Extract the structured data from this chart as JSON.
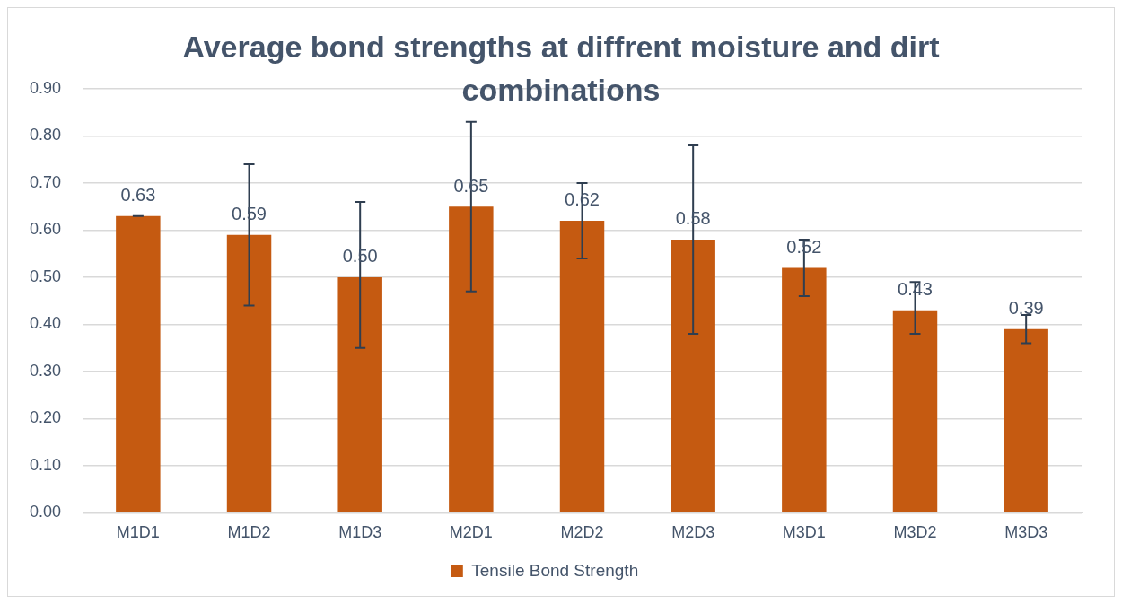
{
  "chart_data": {
    "type": "bar",
    "title": "Average bond strengths at diffrent moisture and dirt combinations",
    "categories": [
      "M1D1",
      "M1D2",
      "M1D3",
      "M2D1",
      "M2D2",
      "M2D3",
      "M3D1",
      "M3D2",
      "M3D3"
    ],
    "series": [
      {
        "name": "Tensile Bond Strength",
        "color": "#c55a11",
        "values": [
          0.63,
          0.59,
          0.5,
          0.65,
          0.62,
          0.58,
          0.52,
          0.43,
          0.39
        ],
        "value_labels": [
          "0.63",
          "0.59",
          "0.50",
          "0.65",
          "0.62",
          "0.58",
          "0.52",
          "0.43",
          "0.39"
        ],
        "errors": [
          0,
          [
            0.44,
            0.74
          ],
          [
            0.35,
            0.66
          ],
          [
            0.47,
            0.83
          ],
          [
            0.54,
            0.7
          ],
          [
            0.38,
            0.78
          ],
          [
            0.46,
            0.58
          ],
          [
            0.38,
            0.49
          ],
          [
            0.36,
            0.42
          ]
        ]
      }
    ],
    "ylim": [
      0,
      0.9
    ],
    "yticks": [
      {
        "value": 0,
        "label": "0.00"
      },
      {
        "value": 0.1,
        "label": "0.10"
      },
      {
        "value": 0.2,
        "label": "0.20"
      },
      {
        "value": 0.3,
        "label": "0.30"
      },
      {
        "value": 0.4,
        "label": "0.40"
      },
      {
        "value": 0.5,
        "label": "0.50"
      },
      {
        "value": 0.6,
        "label": "0.60"
      },
      {
        "value": 0.7,
        "label": "0.70"
      },
      {
        "value": 0.8,
        "label": "0.80"
      },
      {
        "value": 0.9,
        "label": "0.90"
      }
    ],
    "grid": "y",
    "legend": "bottom"
  }
}
